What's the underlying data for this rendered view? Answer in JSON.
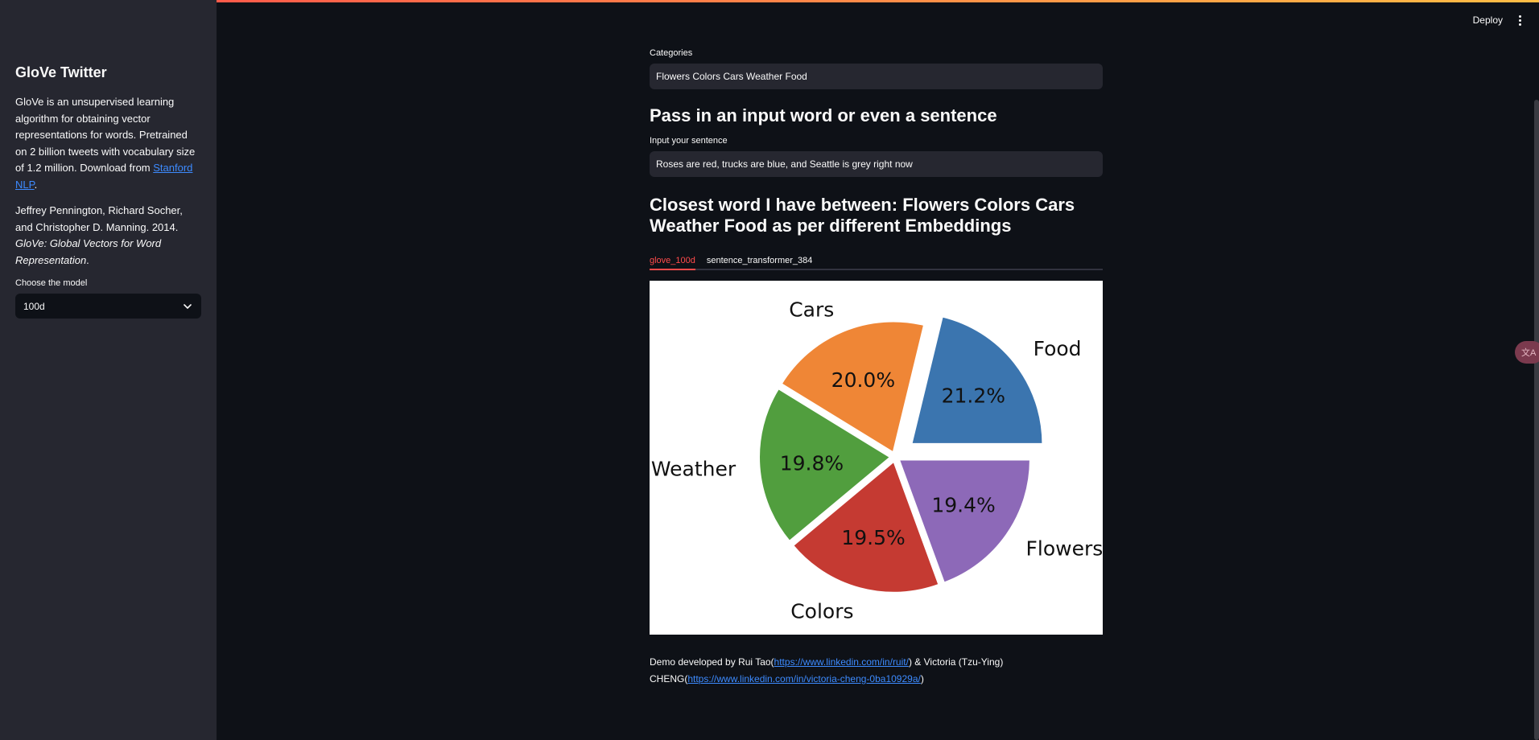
{
  "header": {
    "deploy_label": "Deploy",
    "menu_icon": "kebab-menu-icon"
  },
  "sidebar": {
    "title": "GloVe Twitter",
    "desc_pre": "GloVe is an unsupervised learning algorithm for obtaining vector representations for words. Pretrained on 2 billion tweets with vocabulary size of 1.2 million. Download from ",
    "desc_link": "Stanford NLP",
    "desc_post": ".",
    "citation_pre": "Jeffrey Pennington, Richard Socher, and Christopher D. Manning. 2014. ",
    "citation_italic": "GloVe: Global Vectors for Word Representation",
    "citation_post": ".",
    "model_label": "Choose the model",
    "model_value": "100d"
  },
  "main": {
    "categories_label": "Categories",
    "categories_value": "Flowers Colors Cars Weather Food",
    "heading1": "Pass in an input word or even a sentence",
    "sentence_label": "Input your sentence",
    "sentence_value": "Roses are red, trucks are blue, and Seattle is grey right now",
    "heading2": "Closest word I have between: Flowers Colors Cars Weather Food as per different Embeddings",
    "tabs": [
      {
        "label": "glove_100d",
        "active": true
      },
      {
        "label": "sentence_transformer_384",
        "active": false
      }
    ]
  },
  "footer": {
    "text1": "Demo developed by Rui Tao(",
    "link1": "https://www.linkedin.com/in/ruit/",
    "text2": ") & Victoria (Tzu-Ying) CHENG(",
    "link2": "https://www.linkedin.com/in/victoria-cheng-0ba10929a/",
    "text3": ")"
  },
  "chart_data": {
    "type": "pie",
    "categories": [
      "Food",
      "Cars",
      "Weather",
      "Colors",
      "Flowers"
    ],
    "values": [
      21.2,
      20.0,
      19.8,
      19.5,
      19.4
    ],
    "labels": [
      "21.2%",
      "20.0%",
      "19.8%",
      "19.5%",
      "19.4%"
    ],
    "colors": [
      "#3b75af",
      "#ef8636",
      "#519e3e",
      "#c53a32",
      "#8d69b8"
    ],
    "exploded": [
      "Food"
    ],
    "start_angle_deg": 0
  }
}
